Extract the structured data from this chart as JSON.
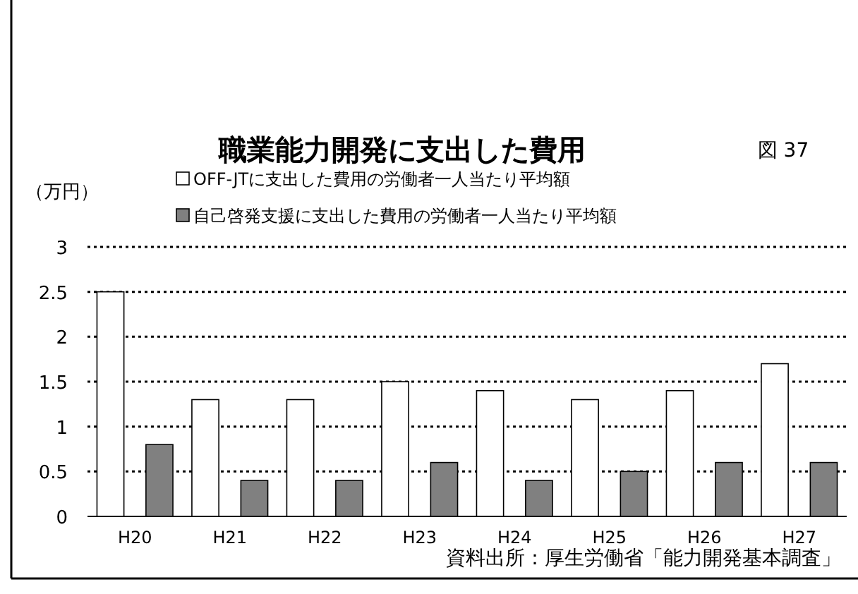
{
  "chart_data": {
    "type": "bar",
    "title": "職業能力開発に支出した費用",
    "ylabel": "（万円）",
    "annotations": [
      "図 37",
      "資料出所：厚生労働省「能力開発基本調査」"
    ],
    "categories": [
      "H20",
      "H21",
      "H22",
      "H23",
      "H24",
      "H25",
      "H26",
      "H27"
    ],
    "series": [
      {
        "name": "OFF-JTに支出した費用の労働者一人当たり平均額",
        "color": "#ffffff",
        "values": [
          2.5,
          1.3,
          1.3,
          1.5,
          1.4,
          1.3,
          1.4,
          1.7
        ]
      },
      {
        "name": "自己啓発支援に支出した費用の労働者一人当たり平均額",
        "color": "#808080",
        "values": [
          0.8,
          0.4,
          0.4,
          0.6,
          0.4,
          0.5,
          0.6,
          0.6
        ]
      }
    ],
    "ylim": [
      0,
      3
    ],
    "yticks": [
      0,
      0.5,
      1,
      1.5,
      2,
      2.5,
      3
    ],
    "grid": "y",
    "legend": "top"
  }
}
